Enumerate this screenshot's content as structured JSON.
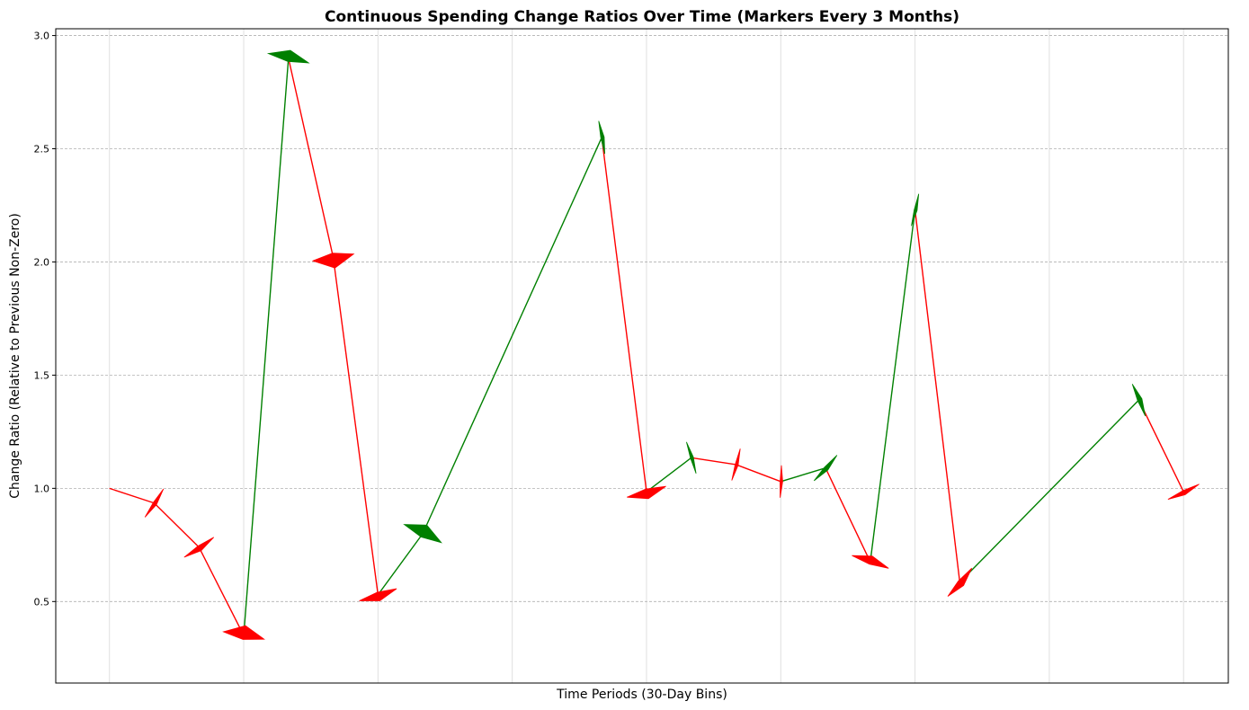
{
  "chart_data": {
    "type": "line",
    "title": "Continuous Spending Change Ratios Over Time (Markers Every 3 Months)",
    "xlabel": "Time Periods (30-Day Bins)",
    "ylabel": "Change Ratio (Relative to Previous Non-Zero)",
    "x": [
      0,
      1,
      2,
      3,
      4,
      5,
      6,
      7,
      8,
      9,
      10,
      11,
      12,
      13,
      14,
      15,
      16,
      17,
      18,
      19,
      20,
      21,
      22,
      23,
      24
    ],
    "values": [
      1.0,
      0.935,
      0.74,
      0.35,
      2.9,
      2.02,
      0.53,
      0.8,
      0,
      0,
      0,
      2.55,
      0.985,
      1.135,
      1.105,
      1.03,
      1.09,
      0.675,
      2.23,
      0.585,
      0,
      0,
      0,
      1.39,
      0.985
    ],
    "nonzero_x": [
      0,
      1,
      2,
      3,
      4,
      5,
      6,
      7,
      11,
      12,
      13,
      14,
      15,
      16,
      17,
      18,
      19,
      23,
      24
    ],
    "marker_every": 1,
    "xlim": [
      -1.2,
      25.0
    ],
    "ylim": [
      0.14,
      3.03
    ],
    "yticks": [
      0.5,
      1.0,
      1.5,
      2.0,
      2.5,
      3.0
    ],
    "ytick_labels": [
      "0.5",
      "1.0",
      "1.5",
      "2.0",
      "2.5",
      "3.0"
    ],
    "xgrid_positions": [
      0,
      3,
      6,
      9,
      12,
      15,
      18,
      21,
      24
    ],
    "grid": true,
    "colors": {
      "increase": "#008000",
      "decrease": "#ff0000",
      "grid_y": "#b0b0b0",
      "grid_x": "#e0e0e0"
    }
  }
}
